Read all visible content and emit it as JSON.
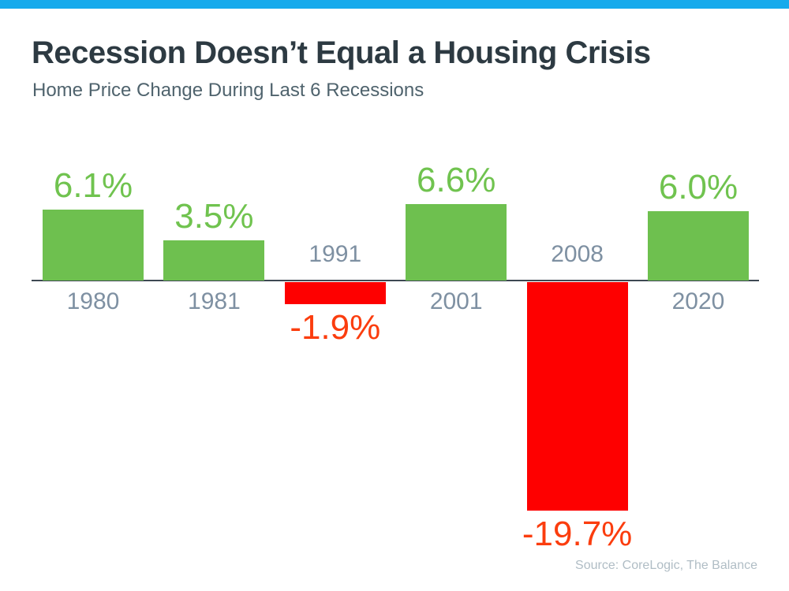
{
  "page": {
    "accent_bar_color": "#16aaec",
    "title": "Recession Doesn’t Equal a Housing Crisis",
    "subtitle": "Home Price Change During Last 6 Recessions",
    "source": "Source: CoreLogic, The Balance"
  },
  "chart_data": {
    "type": "bar",
    "title": "Recession Doesn’t Equal a Housing Crisis",
    "subtitle": "Home Price Change During Last 6 Recessions",
    "categories": [
      "1980",
      "1981",
      "1991",
      "2001",
      "2008",
      "2020"
    ],
    "values": [
      6.1,
      3.5,
      -1.9,
      6.6,
      -19.7,
      6.0
    ],
    "labels": [
      "6.1%",
      "3.5%",
      "-1.9%",
      "6.6%",
      "-19.7%",
      "6.0%"
    ],
    "xlabel": "",
    "ylabel": "",
    "ylim": [
      -19.7,
      6.6
    ],
    "grid": false,
    "legend": null,
    "source": "Source: CoreLogic, The Balance",
    "colors": {
      "positive_bar": "#6ec04f",
      "negative_bar": "#fe0000",
      "positive_label": "#70c34f",
      "negative_label": "#fb3d0e",
      "year_label": "#7e90a2",
      "axis_line": "#3d4852"
    }
  }
}
